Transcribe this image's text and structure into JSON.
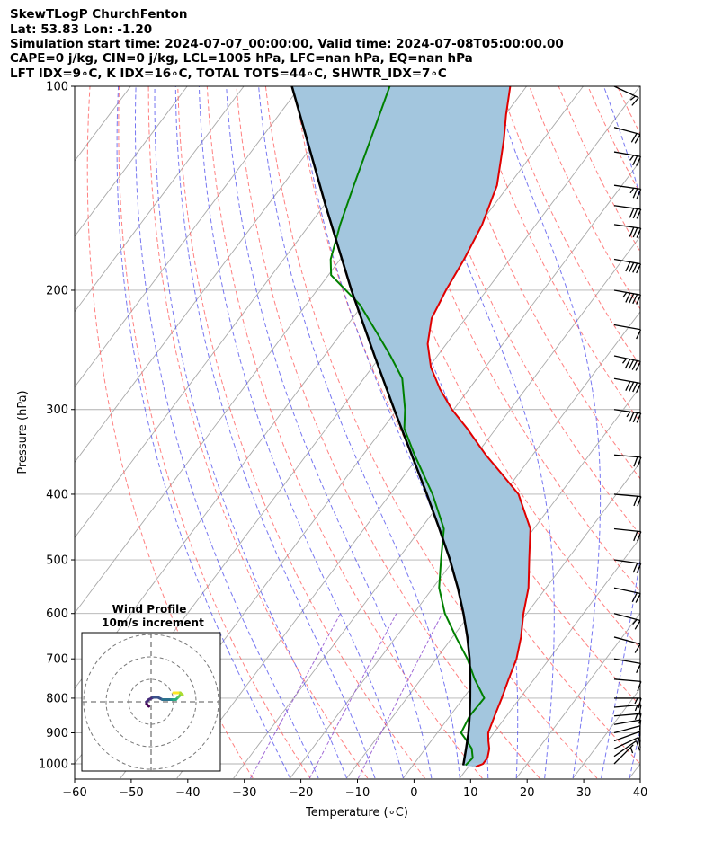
{
  "header": {
    "line1": "SkewTLogP ChurchFenton",
    "line2": "Lat: 53.83   Lon: -1.20",
    "line3": "Simulation start time: 2024-07-07_00:00:00, Valid time: 2024-07-08T05:00:00.00",
    "line4": "CAPE=0 j/kg, CIN=0 j/kg, LCL=1005 hPa, LFC=nan hPa, EQ=nan hPa",
    "line5": "LFT IDX=9∘C, K IDX=16∘C, TOTAL TOTS=44∘C, SHWTR_IDX=7∘C"
  },
  "inset": {
    "title": "Wind Profile",
    "subtitle": "10m/s increment"
  },
  "colors": {
    "temperature": "#e00000",
    "dewpoint": "#008000",
    "parcel": "#000000",
    "cape_fill": "#a3c6de",
    "dry_adiabat": "#ff6060",
    "moist_adiabat": "#5555ee",
    "mixing_ratio": "#8844cc",
    "isotherm": "#aaaaaa",
    "grid": "#b0b0b0"
  },
  "chart_data": {
    "type": "skew-t log-p",
    "xlabel": "Temperature (∘C)",
    "ylabel": "Pressure (hPa)",
    "xlim": [
      -60,
      40
    ],
    "ylim": [
      1050,
      100
    ],
    "xticks": [
      -60,
      -50,
      -40,
      -30,
      -20,
      -10,
      0,
      10,
      20,
      30,
      40
    ],
    "yticks": [
      100,
      200,
      300,
      400,
      500,
      600,
      700,
      800,
      900,
      1000
    ],
    "grid": true,
    "series": [
      {
        "key": "temperature",
        "pressure": [
          1010,
          1000,
          980,
          950,
          925,
          900,
          850,
          800,
          750,
          700,
          650,
          600,
          550,
          500,
          450,
          400,
          370,
          350,
          320,
          300,
          280,
          260,
          240,
          220,
          200,
          180,
          160,
          140,
          120,
          110,
          100
        ],
        "temp": [
          11.3,
          12.2,
          12.2,
          11.3,
          10.1,
          9,
          7.9,
          6.8,
          5.5,
          4.2,
          2.1,
          -0.6,
          -3.1,
          -6.7,
          -10.6,
          -17.3,
          -23.7,
          -28.3,
          -35.1,
          -40.3,
          -45.1,
          -49.6,
          -53.3,
          -56,
          -57.2,
          -58.1,
          -59.5,
          -62.1,
          -66.9,
          -69.9,
          -72.9
        ]
      },
      {
        "key": "dewpoint",
        "pressure": [
          1005,
          980,
          950,
          925,
          900,
          850,
          800,
          750,
          700,
          650,
          600,
          550,
          500,
          450,
          400,
          350,
          320,
          300,
          270,
          250,
          230,
          210,
          190,
          180,
          160,
          140,
          120,
          100
        ],
        "temp": [
          9.3,
          9.6,
          8.2,
          6.3,
          4.2,
          3.5,
          3.7,
          -0.5,
          -4.5,
          -9.4,
          -14.5,
          -18.9,
          -22.3,
          -25.9,
          -32.5,
          -40.9,
          -46.2,
          -48.6,
          -53.2,
          -58.3,
          -64.1,
          -70.5,
          -79.5,
          -81.7,
          -84.6,
          -87.4,
          -90.5,
          -94.2
        ]
      },
      {
        "key": "parcel",
        "pressure": [
          1005,
          950,
          900,
          850,
          800,
          750,
          700,
          650,
          600,
          550,
          500,
          450,
          400,
          350,
          300,
          250,
          200,
          150,
          100
        ],
        "temp": [
          8.9,
          7.2,
          5.5,
          3.5,
          1.2,
          -1.3,
          -4.1,
          -7.4,
          -11.2,
          -15.6,
          -20.7,
          -26.7,
          -33.5,
          -41.4,
          -50.5,
          -61.1,
          -73.9,
          -89.7,
          -111.5
        ]
      }
    ],
    "wind_barbs": {
      "pressure": [
        1000,
        975,
        950,
        925,
        900,
        875,
        850,
        825,
        800,
        750,
        700,
        650,
        600,
        550,
        500,
        450,
        400,
        350,
        300,
        270,
        250,
        225,
        200,
        180,
        160,
        150,
        140,
        125,
        115,
        100
      ],
      "speed_kt": [
        7,
        8,
        9,
        10,
        11,
        12,
        13,
        13,
        14,
        10,
        8,
        12,
        16,
        19,
        20,
        20,
        20,
        22,
        34,
        38,
        44,
        48,
        46,
        41,
        31,
        29,
        26,
        23,
        20,
        17
      ],
      "direction_deg": [
        225,
        235,
        245,
        250,
        255,
        260,
        265,
        265,
        270,
        275,
        280,
        285,
        285,
        282,
        278,
        276,
        275,
        275,
        278,
        280,
        282,
        280,
        280,
        280,
        278,
        278,
        278,
        280,
        285,
        295
      ]
    },
    "hodograph_inset": {
      "title": "Wind Profile",
      "subtitle": "10m/s increment",
      "u": [
        -1,
        -2,
        -2,
        -1,
        1,
        3,
        5,
        7,
        9,
        10,
        11,
        12,
        13,
        14,
        13,
        12,
        10
      ],
      "v": [
        -2,
        -1,
        0,
        1,
        2,
        2,
        1,
        1,
        1,
        1,
        1,
        2,
        3,
        3,
        4,
        4,
        4
      ]
    }
  }
}
